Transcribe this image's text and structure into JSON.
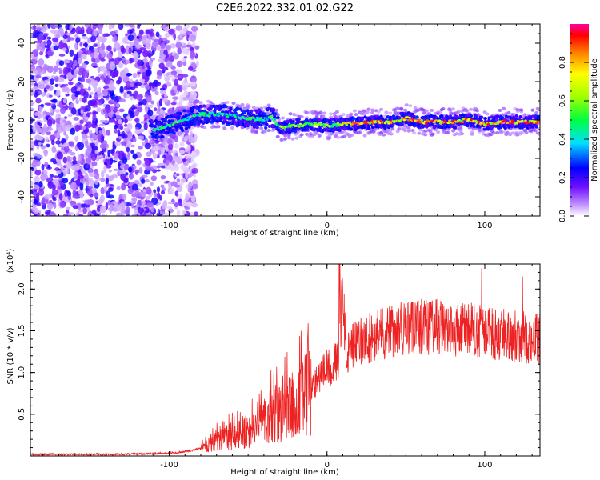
{
  "page": {
    "title": "C2E6.2022.332.01.02.G22"
  },
  "chart_data": [
    {
      "type": "heatmap",
      "xlabel": "Height of straight line (km)",
      "ylabel": "Frequency (Hz)",
      "xlim": [
        -188,
        135
      ],
      "ylim": [
        -50,
        50
      ],
      "xticks": [
        -100,
        0,
        100
      ],
      "yticks": [
        -40,
        -20,
        0,
        20,
        40
      ],
      "colorbar": {
        "label": "Normalized spectral amplitude",
        "range": [
          0,
          1
        ],
        "ticks": [
          "0.0",
          "0.2",
          "0.4",
          "0.6",
          "0.8"
        ],
        "tick_values": [
          0.0,
          0.2,
          0.4,
          0.6,
          0.8
        ]
      },
      "ridge": {
        "x": [
          -110,
          -100,
          -90,
          -80,
          -70,
          -60,
          -50,
          -40,
          -35,
          -30,
          -20,
          -10,
          0,
          10,
          20,
          30,
          40,
          50,
          60,
          70,
          80,
          90,
          100,
          110,
          120,
          135
        ],
        "y": [
          -5,
          -3,
          0,
          3,
          3,
          2,
          1,
          0,
          2,
          -4,
          -3,
          -2,
          -3,
          -2,
          -2,
          -1,
          -1,
          1,
          -1,
          -1,
          -1,
          0,
          -2,
          -1,
          -1,
          -1
        ]
      },
      "noise_region_x": [
        -188,
        -92
      ]
    },
    {
      "type": "line",
      "xlabel": "Height of straight line (km)",
      "ylabel": "SNR (10 * v/v)",
      "y_scale_label": "(x10⁴)",
      "xlim": [
        -188,
        135
      ],
      "ylim": [
        0,
        2.3
      ],
      "xticks": [
        -100,
        0,
        100
      ],
      "yticks": [
        0.5,
        1.0,
        1.5,
        2.0
      ],
      "ytick_labels": [
        "0.5",
        "1.0",
        "1.5",
        "2.0"
      ],
      "color": "#ee2222",
      "series": [
        {
          "x": [
            -188,
            -170,
            -150,
            -130,
            -110,
            -95,
            -85,
            -75,
            -70,
            -65,
            -60,
            -55,
            -50,
            -45,
            -40,
            -35,
            -30,
            -25,
            -20,
            -15,
            -10,
            -5,
            0,
            5,
            8,
            10,
            12,
            15,
            20,
            25,
            30,
            40,
            50,
            60,
            70,
            80,
            90,
            100,
            110,
            120,
            130,
            135
          ],
          "y": [
            0.02,
            0.02,
            0.02,
            0.02,
            0.03,
            0.04,
            0.07,
            0.12,
            0.18,
            0.22,
            0.24,
            0.25,
            0.3,
            0.35,
            0.38,
            0.5,
            0.55,
            0.6,
            0.55,
            0.7,
            0.8,
            0.95,
            1.05,
            1.1,
            1.2,
            2.1,
            1.15,
            1.3,
            1.35,
            1.4,
            1.45,
            1.5,
            1.52,
            1.55,
            1.55,
            1.5,
            1.52,
            1.48,
            1.45,
            1.45,
            1.4,
            1.4
          ]
        }
      ],
      "spikes": [
        {
          "x": 8,
          "y": 2.3
        },
        {
          "x": 98,
          "y": 2.25
        },
        {
          "x": 124,
          "y": 2.15
        }
      ]
    }
  ]
}
